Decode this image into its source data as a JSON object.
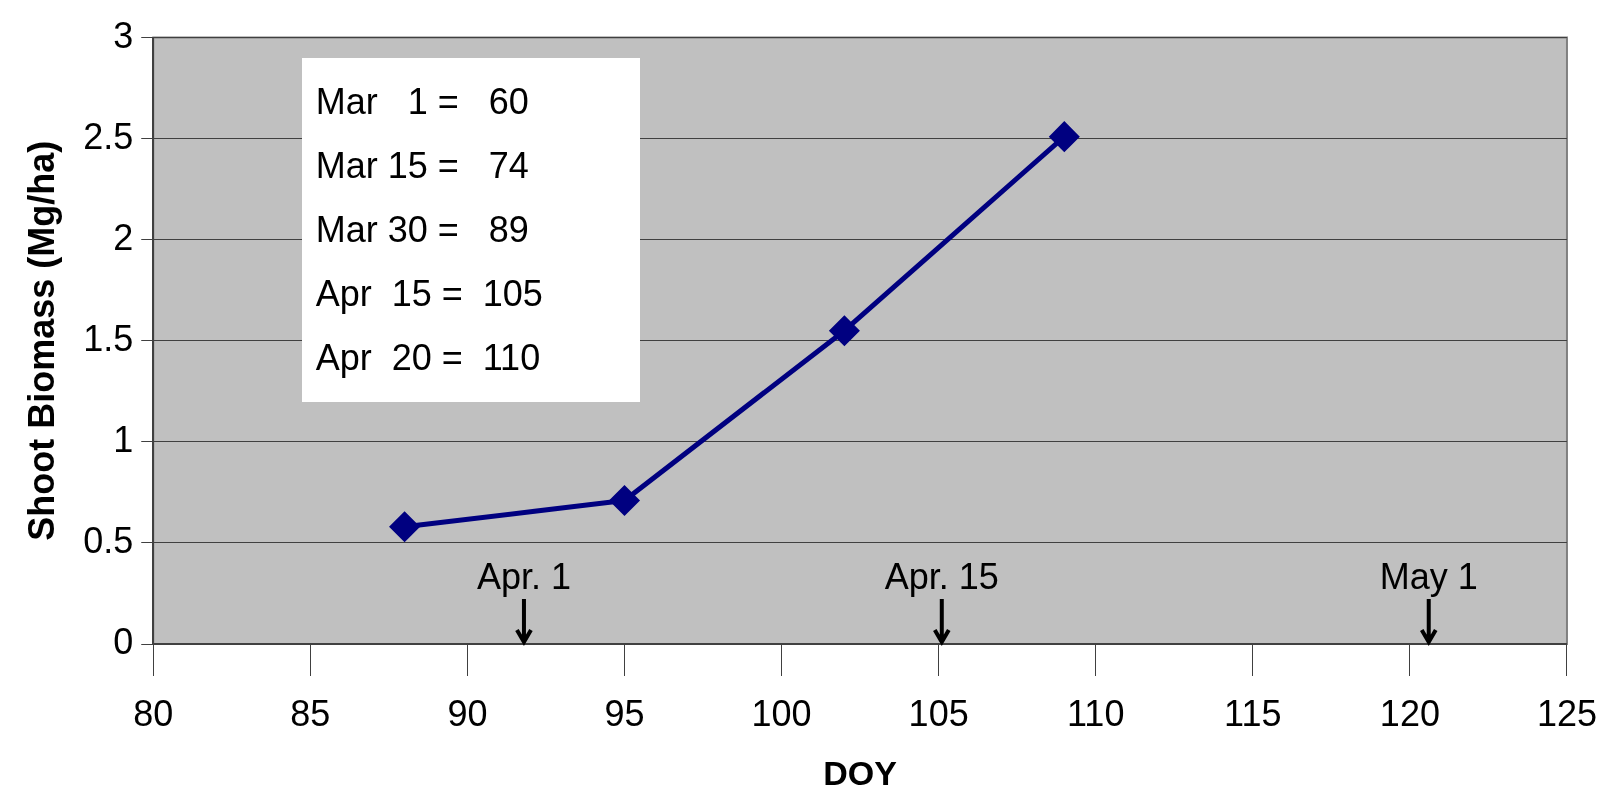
{
  "chart_data": {
    "type": "line",
    "xlabel": "DOY",
    "ylabel": "Shoot Biomass (Mg/ha)",
    "x": [
      88,
      95,
      102,
      109
    ],
    "series": [
      {
        "color": "#000080",
        "values": [
          0.58,
          0.71,
          1.55,
          2.51
        ]
      }
    ],
    "xlim": [
      80,
      125
    ],
    "xticks": [
      80,
      85,
      90,
      95,
      100,
      105,
      110,
      115,
      120,
      125
    ],
    "ylim": [
      0,
      3
    ],
    "yticks": [
      0,
      0.5,
      1,
      1.5,
      2,
      2.5,
      3
    ],
    "grid": "y",
    "legend": false,
    "marker": "diamond",
    "line_style": "solid",
    "annotations": [
      "Mar   1 =   60",
      "Mar 15 =   74",
      "Mar 30 =   89",
      "Apr  15 =  105",
      "Apr  20 =  110"
    ],
    "ref_lines": [
      {
        "axis": "x",
        "value": 91.8,
        "label": "Apr. 1"
      },
      {
        "axis": "x",
        "value": 105.1,
        "label": "Apr. 15"
      },
      {
        "axis": "x",
        "value": 120.6,
        "label": "May 1"
      }
    ]
  }
}
